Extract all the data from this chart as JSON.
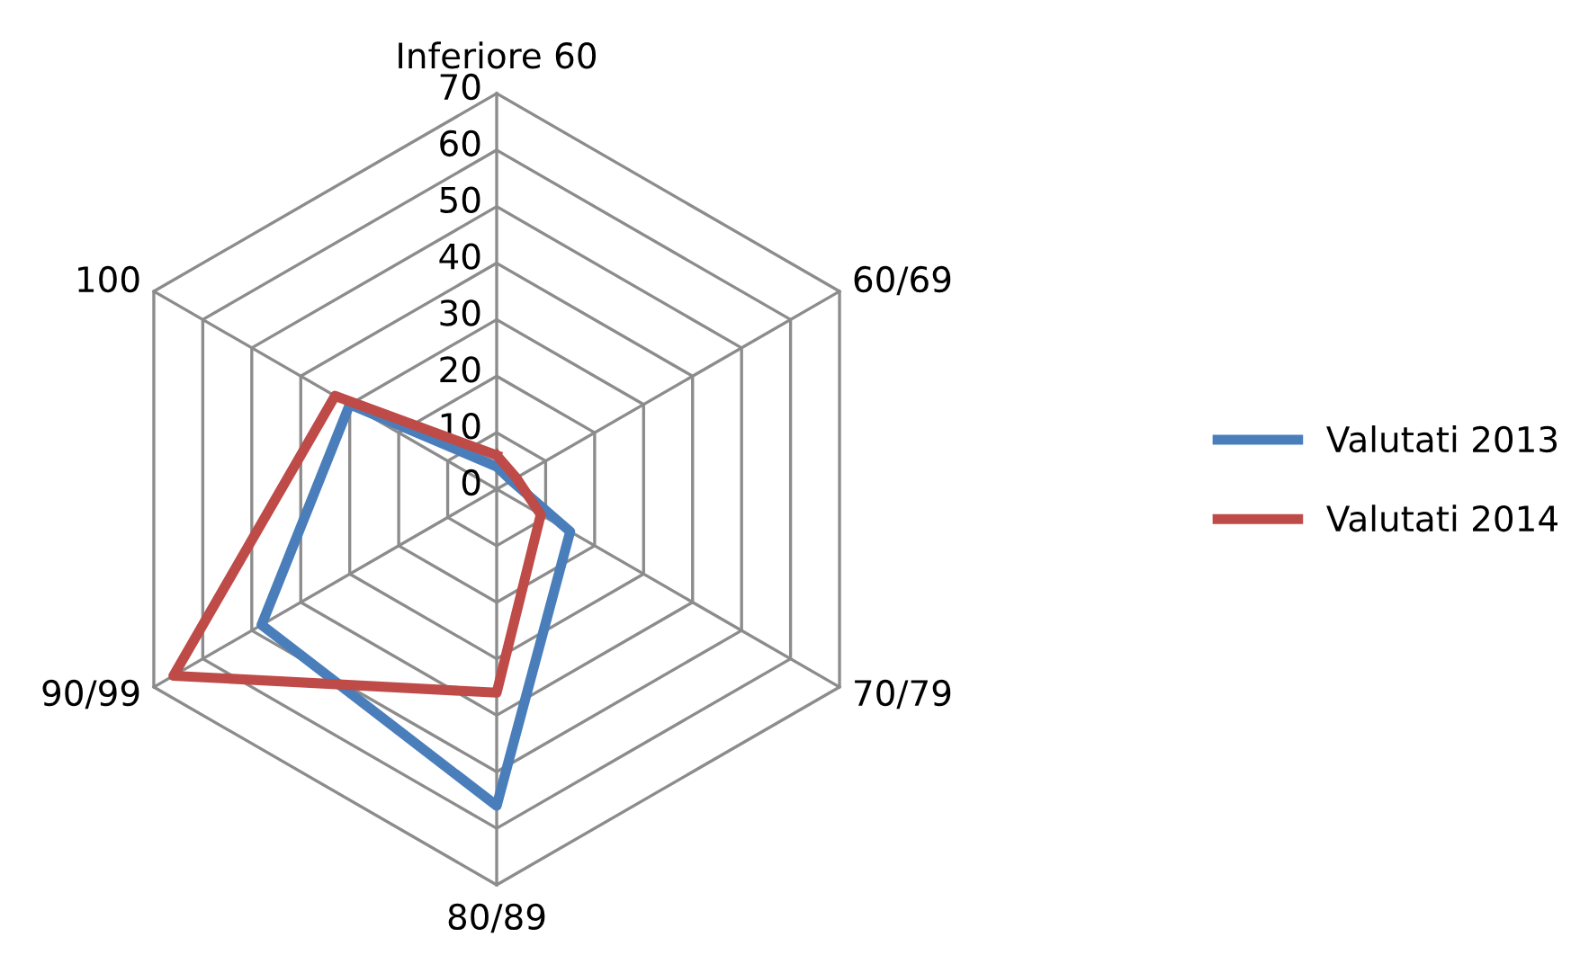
{
  "chart_data": {
    "type": "radar",
    "categories": [
      "Inferiore 60",
      "60/69",
      "70/79",
      "80/89",
      "90/99",
      "100"
    ],
    "series": [
      {
        "name": "Valutati 2013",
        "color": "#4a7ebb",
        "values": [
          4,
          3,
          15,
          56,
          48,
          30
        ]
      },
      {
        "name": "Valutati 2014",
        "color": "#be4b48",
        "values": [
          6,
          4,
          9,
          36,
          66,
          33
        ]
      }
    ],
    "ylim": [
      0,
      70
    ],
    "yticks": [
      0,
      10,
      20,
      30,
      40,
      50,
      60,
      70
    ],
    "grid": true,
    "legend": "right",
    "marker": "none",
    "line_style": "solid"
  }
}
